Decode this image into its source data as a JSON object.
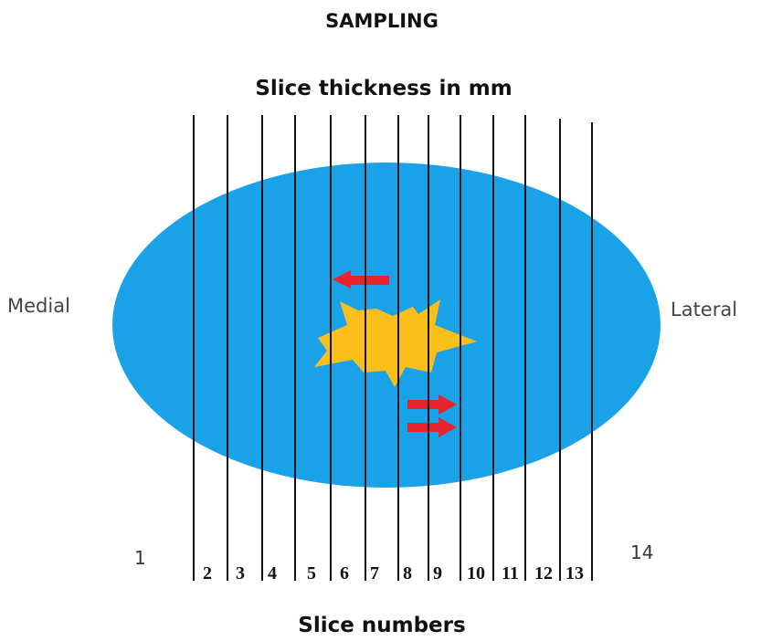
{
  "title": "SAMPLING",
  "subtitle": "Slice thickness in mm",
  "left_label": "Medial",
  "right_label": "Lateral",
  "bottom_label": "Slice numbers",
  "slice_numbers": [
    "1",
    "2",
    "3",
    "4",
    "5",
    "6",
    "7",
    "8",
    "9",
    "10",
    "11",
    "12",
    "13",
    "14"
  ],
  "colors": {
    "ellipse": "#1aa2e8",
    "lesion": "#fbbf1c",
    "arrow": "#e8232b",
    "line": "#111111"
  },
  "icons": [
    "lesion-star-icon",
    "left-arrow-icon",
    "right-arrow-icon"
  ]
}
